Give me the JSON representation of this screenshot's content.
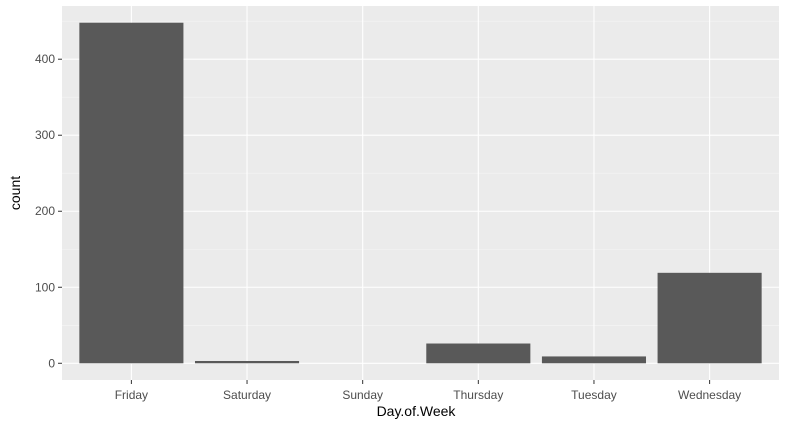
{
  "chart_data": {
    "type": "bar",
    "title": "",
    "xlabel": "Day.of.Week",
    "ylabel": "count",
    "categories": [
      "Friday",
      "Saturday",
      "Sunday",
      "Thursday",
      "Tuesday",
      "Wednesday"
    ],
    "values": [
      448,
      3,
      0,
      26,
      9,
      119
    ],
    "ylim": [
      -22,
      470
    ],
    "yticks": [
      0,
      100,
      200,
      300,
      400
    ],
    "yticks_minor": [
      50,
      150,
      250,
      350,
      450
    ],
    "grid": true,
    "colors": {
      "bar": "#595959",
      "panel": "#ebebeb",
      "grid_major": "#ffffff",
      "grid_minor": "#f5f5f5",
      "tick_text": "#4d4d4d",
      "tick_mark": "#333333",
      "title_text": "#000000"
    }
  }
}
